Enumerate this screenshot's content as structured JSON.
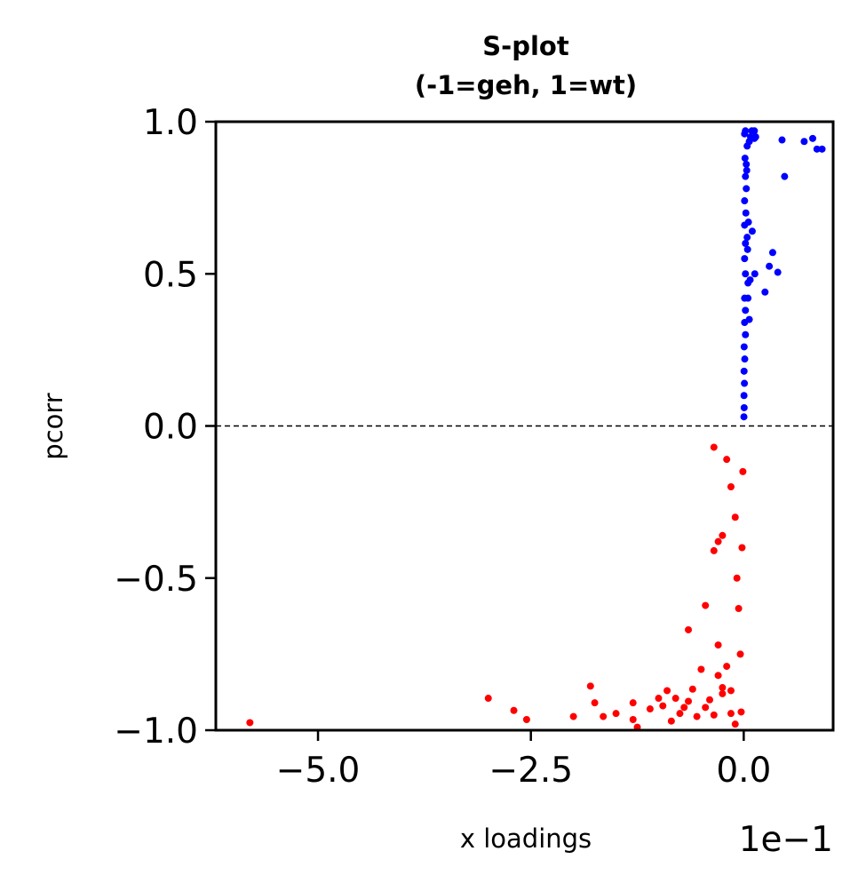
{
  "chart_data": {
    "type": "scatter",
    "title": "S-plot",
    "subtitle": "(-1=geh, 1=wt)",
    "xlabel": "x loadings",
    "ylabel": "pcorr",
    "x_offset_label": "1e−1",
    "xlim": [
      -0.62,
      0.105
    ],
    "ylim": [
      -1.0,
      1.0
    ],
    "x_ticks": [
      -0.5,
      -0.25,
      0.0
    ],
    "x_tick_labels": [
      "−5.0",
      "−2.5",
      "0.0"
    ],
    "y_ticks": [
      1.0,
      0.5,
      0.0,
      -0.5,
      -1.0
    ],
    "y_tick_labels": [
      "1.0",
      "0.5",
      "0.0",
      "−0.5",
      "−1.0"
    ],
    "reference_line_y": 0.0,
    "grid": false,
    "series": [
      {
        "color": "#0000ff",
        "points": [
          [
            0.092,
            0.91
          ],
          [
            0.086,
            0.91
          ],
          [
            0.081,
            0.945
          ],
          [
            0.071,
            0.935
          ],
          [
            0.045,
            0.94
          ],
          [
            0.048,
            0.82
          ],
          [
            0.04,
            0.505
          ],
          [
            0.034,
            0.57
          ],
          [
            0.03,
            0.525
          ],
          [
            0.025,
            0.44
          ],
          [
            0.01,
            0.64
          ],
          [
            0.013,
            0.5
          ],
          [
            0.005,
            0.42
          ],
          [
            0.002,
            0.97
          ],
          [
            0.001,
            0.96
          ],
          [
            0.0125,
            0.945
          ],
          [
            0.014,
            0.95
          ],
          [
            0.0125,
            0.97
          ],
          [
            0.0065,
            0.935
          ],
          [
            0.008,
            0.95
          ],
          [
            0.004,
            0.92
          ],
          [
            0.003,
            0.86
          ],
          [
            0.002,
            0.82
          ],
          [
            0.003,
            0.78
          ],
          [
            0.001,
            0.74
          ],
          [
            0.0025,
            0.7
          ],
          [
            0.001,
            0.66
          ],
          [
            0.002,
            0.6
          ],
          [
            0.004,
            0.62
          ],
          [
            0.001,
            0.55
          ],
          [
            0.002,
            0.5
          ],
          [
            0.005,
            0.47
          ],
          [
            0.001,
            0.42
          ],
          [
            0.002,
            0.38
          ],
          [
            0.001,
            0.34
          ],
          [
            0.002,
            0.3
          ],
          [
            0.0005,
            0.26
          ],
          [
            0.0012,
            0.22
          ],
          [
            0.0004,
            0.18
          ],
          [
            0.0008,
            0.14
          ],
          [
            0.0003,
            0.1
          ],
          [
            0.0005,
            0.06
          ],
          [
            0.0002,
            0.03
          ],
          [
            0.0035,
            0.84
          ],
          [
            0.0055,
            0.67
          ],
          [
            0.0045,
            0.58
          ],
          [
            0.0065,
            0.35
          ],
          [
            0.0015,
            0.88
          ],
          [
            0.0075,
            0.48
          ],
          [
            0.0095,
            0.97
          ]
        ]
      },
      {
        "color": "#ff0000",
        "points": [
          [
            -0.58,
            -0.975
          ],
          [
            -0.3,
            -0.895
          ],
          [
            -0.27,
            -0.935
          ],
          [
            -0.255,
            -0.965
          ],
          [
            -0.2,
            -0.955
          ],
          [
            -0.18,
            -0.855
          ],
          [
            -0.175,
            -0.91
          ],
          [
            -0.165,
            -0.955
          ],
          [
            -0.15,
            -0.945
          ],
          [
            -0.13,
            -0.91
          ],
          [
            -0.13,
            -0.965
          ],
          [
            -0.125,
            -0.99
          ],
          [
            -0.11,
            -0.93
          ],
          [
            -0.1,
            -0.895
          ],
          [
            -0.095,
            -0.92
          ],
          [
            -0.09,
            -0.87
          ],
          [
            -0.085,
            -0.97
          ],
          [
            -0.08,
            -0.895
          ],
          [
            -0.075,
            -0.945
          ],
          [
            -0.07,
            -0.925
          ],
          [
            -0.065,
            -0.905
          ],
          [
            -0.06,
            -0.865
          ],
          [
            -0.055,
            -0.955
          ],
          [
            -0.05,
            -0.8
          ],
          [
            -0.045,
            -0.925
          ],
          [
            -0.04,
            -0.9
          ],
          [
            -0.035,
            -0.95
          ],
          [
            -0.03,
            -0.82
          ],
          [
            -0.025,
            -0.88
          ],
          [
            -0.02,
            -0.79
          ],
          [
            -0.015,
            -0.945
          ],
          [
            -0.015,
            -0.87
          ],
          [
            -0.01,
            -0.98
          ],
          [
            -0.065,
            -0.67
          ],
          [
            -0.045,
            -0.59
          ],
          [
            -0.035,
            -0.41
          ],
          [
            -0.03,
            -0.38
          ],
          [
            -0.025,
            -0.36
          ],
          [
            -0.03,
            -0.72
          ],
          [
            -0.025,
            -0.86
          ],
          [
            -0.035,
            -0.07
          ],
          [
            -0.02,
            -0.11
          ],
          [
            -0.015,
            -0.2
          ],
          [
            -0.01,
            -0.3
          ],
          [
            -0.008,
            -0.5
          ],
          [
            -0.006,
            -0.6
          ],
          [
            -0.004,
            -0.75
          ],
          [
            -0.003,
            -0.94
          ],
          [
            -0.002,
            -0.4
          ],
          [
            -0.001,
            -0.15
          ]
        ]
      }
    ]
  }
}
